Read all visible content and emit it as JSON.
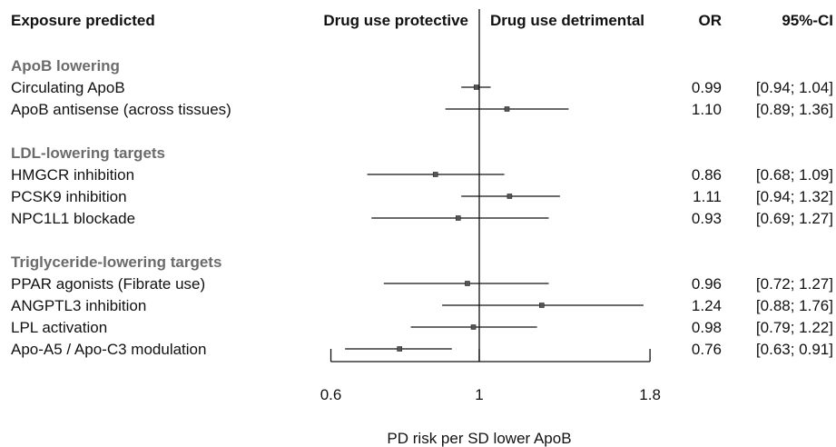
{
  "chart_data": {
    "type": "forest",
    "columns": {
      "exposure": "Exposure predicted",
      "left_direction": "Drug use protective",
      "right_direction": "Drug use detrimental",
      "or": "OR",
      "ci": "95%-CI"
    },
    "groups": [
      {
        "name": "ApoB lowering",
        "rows": [
          {
            "label": "Circulating ApoB",
            "or": 0.99,
            "lo": 0.94,
            "hi": 1.04,
            "or_text": "0.99",
            "ci_text": "[0.94; 1.04]"
          },
          {
            "label": "ApoB antisense (across tissues)",
            "or": 1.1,
            "lo": 0.89,
            "hi": 1.36,
            "or_text": "1.10",
            "ci_text": "[0.89; 1.36]"
          }
        ]
      },
      {
        "name": "LDL-lowering targets",
        "rows": [
          {
            "label": "HMGCR inhibition",
            "or": 0.86,
            "lo": 0.68,
            "hi": 1.09,
            "or_text": "0.86",
            "ci_text": "[0.68; 1.09]"
          },
          {
            "label": "PCSK9 inhibition",
            "or": 1.11,
            "lo": 0.94,
            "hi": 1.32,
            "or_text": "1.11",
            "ci_text": "[0.94; 1.32]"
          },
          {
            "label": "NPC1L1 blockade",
            "or": 0.93,
            "lo": 0.69,
            "hi": 1.27,
            "or_text": "0.93",
            "ci_text": "[0.69; 1.27]"
          }
        ]
      },
      {
        "name": "Triglyceride-lowering targets",
        "rows": [
          {
            "label": "PPAR agonists (Fibrate use)",
            "or": 0.96,
            "lo": 0.72,
            "hi": 1.27,
            "or_text": "0.96",
            "ci_text": "[0.72; 1.27]"
          },
          {
            "label": "ANGPTL3 inhibition",
            "or": 1.24,
            "lo": 0.88,
            "hi": 1.76,
            "or_text": "1.24",
            "ci_text": "[0.88; 1.76]"
          },
          {
            "label": "LPL activation",
            "or": 0.98,
            "lo": 0.79,
            "hi": 1.22,
            "or_text": "0.98",
            "ci_text": "[0.79; 1.22]"
          },
          {
            "label": "Apo-A5 / Apo-C3 modulation",
            "or": 0.76,
            "lo": 0.63,
            "hi": 0.91,
            "or_text": "0.76",
            "ci_text": "[0.63; 0.91]"
          }
        ]
      }
    ],
    "x_axis": {
      "scale": "log",
      "ticks": [
        0.6,
        1,
        1.8
      ],
      "tick_labels": [
        "0.6",
        "1",
        "1.8"
      ],
      "reference": 1,
      "label": "PD risk per SD lower ApoB"
    }
  }
}
